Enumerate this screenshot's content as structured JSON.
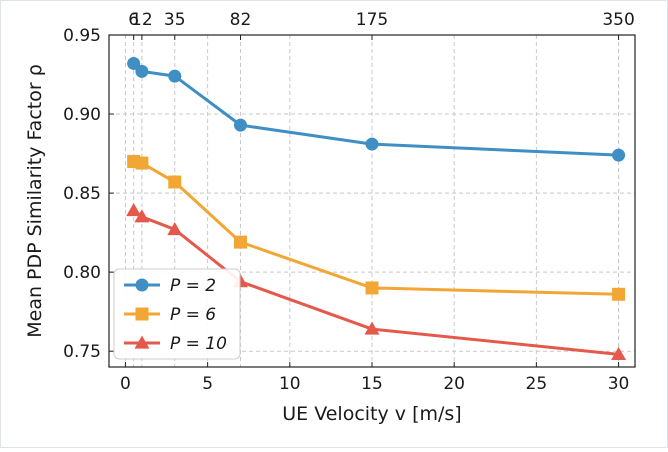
{
  "chart_data": {
    "type": "line",
    "title": "",
    "xlabel": "UE Velocity v [m/s]",
    "ylabel": "Mean PDP Similarity Factor ρ",
    "xlim": [
      -1,
      31
    ],
    "ylim": [
      0.74,
      0.95
    ],
    "xticks": [
      0,
      5,
      10,
      15,
      20,
      25,
      30
    ],
    "yticks": [
      0.75,
      0.8,
      0.85,
      0.9,
      0.95
    ],
    "top_axis": {
      "positions": [
        0.5,
        1,
        3,
        7,
        15,
        30
      ],
      "labels": [
        "6",
        "12",
        "35",
        "82",
        "175",
        "350"
      ]
    },
    "grid": true,
    "legend_position": "lower-left",
    "x": [
      0.5,
      1,
      3,
      7,
      15,
      30
    ],
    "series": [
      {
        "name": "P = 2",
        "values": [
          0.932,
          0.927,
          0.924,
          0.893,
          0.881,
          0.874
        ],
        "color": "#3f8fc4",
        "marker": "circle"
      },
      {
        "name": "P = 6",
        "values": [
          0.87,
          0.869,
          0.857,
          0.819,
          0.79,
          0.786
        ],
        "color": "#f2a633",
        "marker": "square"
      },
      {
        "name": "P = 10",
        "values": [
          0.839,
          0.835,
          0.827,
          0.794,
          0.764,
          0.748
        ],
        "color": "#e35a4c",
        "marker": "triangle"
      }
    ]
  }
}
